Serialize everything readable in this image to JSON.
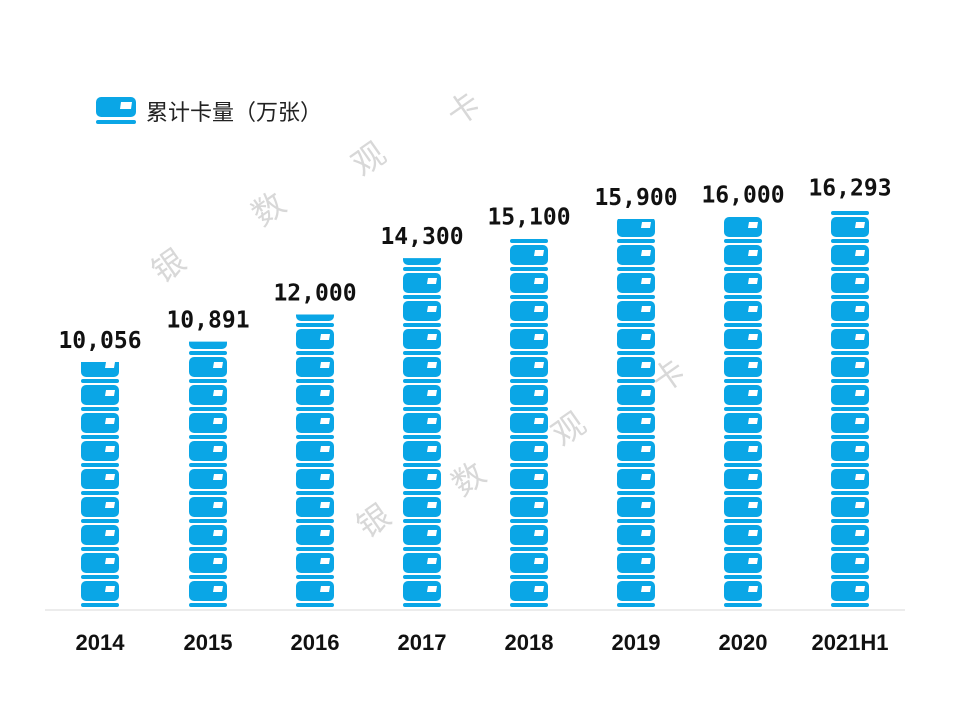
{
  "chart_data": {
    "type": "bar",
    "style": "pictogram",
    "icon": "bank-card-icon",
    "categories": [
      "2014",
      "2015",
      "2016",
      "2017",
      "2018",
      "2019",
      "2020",
      "2021H1"
    ],
    "series": [
      {
        "name": "累计卡量（万张）",
        "values": [
          10056,
          10891,
          12000,
          14300,
          15100,
          15900,
          16000,
          16293
        ]
      }
    ],
    "data_labels": [
      "10,056",
      "10,891",
      "12,000",
      "14,300",
      "15,100",
      "15,900",
      "16,000",
      "16,293"
    ],
    "title": "",
    "xlabel": "",
    "ylabel": "",
    "ylim": [
      0,
      16293
    ],
    "grid": false,
    "legend_position": "top-left",
    "colors": {
      "bar": "#0aa6e6",
      "axis": "#d9d9d9",
      "text": "#111111"
    }
  },
  "legend": {
    "label": "累计卡量（万张）"
  },
  "watermark": {
    "text": [
      "银",
      "数",
      "观",
      "卡"
    ]
  }
}
